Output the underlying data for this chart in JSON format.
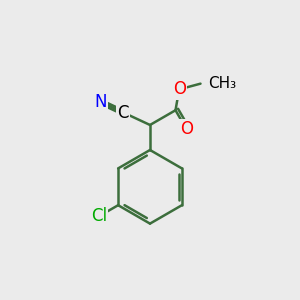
{
  "bg_color": "#ebebeb",
  "bond_color": "#3c6e3c",
  "bond_width": 1.8,
  "N_color": "#0000ff",
  "O_color": "#ff0000",
  "Cl_color": "#00aa00",
  "text_color": "#000000",
  "font_size": 12,
  "small_font_size": 11,
  "fig_size": [
    3.0,
    3.0
  ],
  "dpi": 100,
  "xlim": [
    0,
    10
  ],
  "ylim": [
    0,
    10
  ]
}
